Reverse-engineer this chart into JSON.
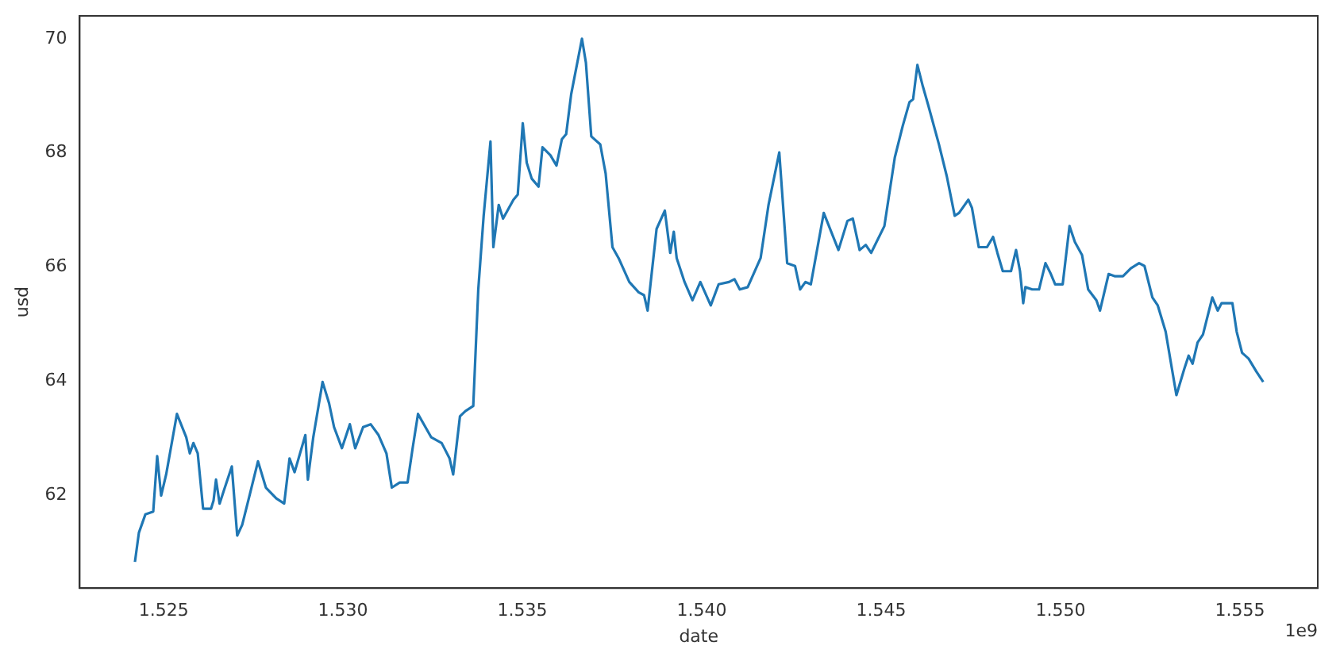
{
  "chart_data": {
    "type": "line",
    "xlabel": "date",
    "ylabel": "usd",
    "annotations": [
      "1e9"
    ],
    "marker": "none",
    "grid": false,
    "legend": false,
    "xlim": [
      1.52266,
      1.55717
    ],
    "xticks": [
      1.525,
      {
        "value": 1.53,
        "label": "1.530"
      },
      1.535,
      {
        "value": 1.54,
        "label": "1.540"
      },
      1.545,
      {
        "value": 1.55,
        "label": "1.550"
      },
      1.555
    ],
    "ylim": [
      60.38,
      70.4
    ],
    "yticks": [
      62,
      64,
      66,
      68,
      70
    ],
    "series": [
      {
        "color": "#1f77b4",
        "x": [
          1.5242,
          1.52431,
          1.52449,
          1.52471,
          1.52482,
          1.52493,
          1.52507,
          1.52537,
          1.52563,
          1.52573,
          1.52583,
          1.52595,
          1.5261,
          1.52632,
          1.52639,
          1.52646,
          1.52656,
          1.52668,
          1.5269,
          1.52705,
          1.52719,
          1.52741,
          1.52763,
          1.52785,
          1.52814,
          1.52836,
          1.52851,
          1.52865,
          1.52895,
          1.52902,
          1.52917,
          1.52943,
          1.52961,
          1.52975,
          1.52997,
          1.53019,
          1.53034,
          1.53056,
          1.53077,
          1.53099,
          1.53121,
          1.53136,
          1.53158,
          1.5318,
          1.53194,
          1.53209,
          1.53246,
          1.53275,
          1.53297,
          1.53307,
          1.53326,
          1.53341,
          1.53363,
          1.53377,
          1.53392,
          1.53411,
          1.53419,
          1.53434,
          1.53446,
          1.53475,
          1.53487,
          1.53501,
          1.53512,
          1.53526,
          1.53545,
          1.53556,
          1.53578,
          1.53595,
          1.5361,
          1.53622,
          1.53636,
          1.53666,
          1.53677,
          1.53692,
          1.53717,
          1.53732,
          1.53751,
          1.53768,
          1.53798,
          1.53824,
          1.53839,
          1.53849,
          1.53874,
          1.53897,
          1.53912,
          1.53922,
          1.5393,
          1.53952,
          1.53974,
          1.53996,
          1.54025,
          1.54047,
          1.54076,
          1.54091,
          1.54106,
          1.54128,
          1.54164,
          1.54186,
          1.54216,
          1.54238,
          1.5426,
          1.54274,
          1.54289,
          1.54304,
          1.5434,
          1.54381,
          1.54406,
          1.54421,
          1.5444,
          1.54457,
          1.54472,
          1.54509,
          1.54538,
          1.5456,
          1.54579,
          1.54589,
          1.54601,
          1.54616,
          1.54631,
          1.54661,
          1.54683,
          1.54705,
          1.54717,
          1.54743,
          1.54753,
          1.54772,
          1.54795,
          1.54812,
          1.54824,
          1.54839,
          1.54862,
          1.54876,
          1.54887,
          1.54896,
          1.54902,
          1.54921,
          1.5494,
          1.54958,
          1.54973,
          1.54985,
          1.55006,
          1.55025,
          1.5504,
          1.5506,
          1.55077,
          1.551,
          1.5511,
          1.55134,
          1.55152,
          1.55174,
          1.55196,
          1.55219,
          1.55234,
          1.55256,
          1.55271,
          1.55293,
          1.55308,
          1.55323,
          1.55345,
          1.55357,
          1.55368,
          1.55382,
          1.55397,
          1.55423,
          1.55438,
          1.55449,
          1.55479,
          1.55491,
          1.55506,
          1.55524,
          1.55546,
          1.55565
        ],
        "values": [
          60.84,
          61.35,
          61.67,
          61.72,
          62.69,
          62.0,
          62.37,
          63.43,
          63.02,
          62.74,
          62.92,
          62.74,
          61.77,
          61.77,
          61.91,
          62.28,
          61.86,
          62.09,
          62.51,
          61.3,
          61.49,
          62.04,
          62.6,
          62.14,
          61.95,
          61.86,
          62.65,
          62.41,
          63.06,
          62.28,
          63.02,
          63.99,
          63.62,
          63.2,
          62.83,
          63.25,
          62.83,
          63.2,
          63.25,
          63.06,
          62.74,
          62.14,
          62.23,
          62.23,
          62.83,
          63.43,
          63.02,
          62.92,
          62.65,
          62.37,
          63.39,
          63.48,
          63.57,
          65.61,
          66.9,
          68.2,
          66.35,
          67.09,
          66.85,
          67.18,
          67.27,
          68.52,
          67.83,
          67.55,
          67.41,
          68.1,
          67.96,
          67.78,
          68.24,
          68.33,
          69.03,
          70.0,
          69.58,
          68.29,
          68.15,
          67.64,
          66.35,
          66.16,
          65.74,
          65.56,
          65.51,
          65.24,
          66.67,
          66.99,
          66.25,
          66.62,
          66.16,
          65.74,
          65.42,
          65.74,
          65.33,
          65.7,
          65.74,
          65.79,
          65.61,
          65.65,
          66.16,
          67.09,
          68.01,
          66.07,
          66.02,
          65.61,
          65.74,
          65.7,
          66.95,
          66.3,
          66.81,
          66.85,
          66.3,
          66.39,
          66.25,
          66.72,
          67.92,
          68.47,
          68.89,
          68.94,
          69.54,
          69.17,
          68.84,
          68.15,
          67.59,
          66.9,
          66.95,
          67.18,
          67.04,
          66.35,
          66.35,
          66.53,
          66.25,
          65.93,
          65.93,
          66.3,
          65.93,
          65.37,
          65.65,
          65.61,
          65.61,
          66.07,
          65.88,
          65.7,
          65.7,
          66.72,
          66.44,
          66.21,
          65.61,
          65.42,
          65.24,
          65.88,
          65.84,
          65.84,
          65.98,
          66.07,
          66.02,
          65.47,
          65.33,
          64.87,
          64.31,
          63.76,
          64.22,
          64.45,
          64.31,
          64.68,
          64.82,
          65.47,
          65.24,
          65.37,
          65.37,
          64.87,
          64.5,
          64.4,
          64.17,
          63.99
        ]
      }
    ]
  }
}
